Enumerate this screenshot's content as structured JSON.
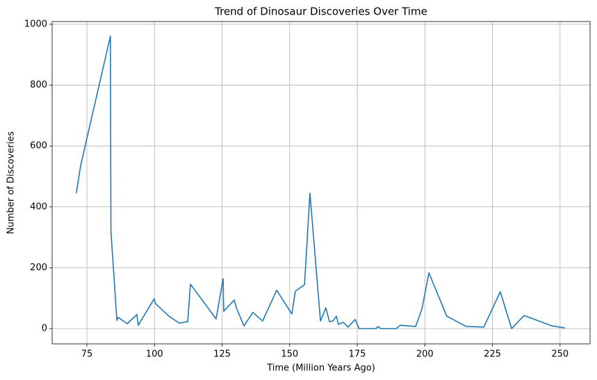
{
  "chart_data": {
    "type": "line",
    "title": "Trend of Dinosaur Discoveries Over Time",
    "x_label": "Time (Million Years Ago)",
    "y_label": "Number of Discoveries",
    "x": [
      71.1,
      72.7,
      83.7,
      83.9,
      86.1,
      86.6,
      89.9,
      93.5,
      94.0,
      99.9,
      100.4,
      105.3,
      109.2,
      112.3,
      113.3,
      122.8,
      125.4,
      125.6,
      129.5,
      130.3,
      133.1,
      136.4,
      140.0,
      145.2,
      150.8,
      152.1,
      155.5,
      157.5,
      161.4,
      163.4,
      164.7,
      166.0,
      167.3,
      168.0,
      169.8,
      171.6,
      174.2,
      175.7,
      181.9,
      182.7,
      183.7,
      189.4,
      190.9,
      196.6,
      198.9,
      201.5,
      208.1,
      215.3,
      221.8,
      227.9,
      232.1,
      236.7,
      247.0,
      251.8
    ],
    "series": [
      {
        "color": "#1f77b4",
        "values": [
          445,
          536,
          961,
          320,
          27,
          37,
          16,
          46,
          11,
          98,
          82,
          41,
          18,
          23,
          146,
          32,
          164,
          57,
          94,
          68,
          9,
          53,
          25,
          126,
          48,
          123,
          144,
          445,
          25,
          68,
          23,
          25,
          41,
          14,
          21,
          5,
          30,
          0,
          0,
          7,
          0,
          0,
          11,
          7,
          64,
          183,
          41,
          7,
          5,
          121,
          0,
          43,
          9,
          2
        ]
      }
    ],
    "xlim": [
      62.15,
      261.1
    ],
    "ylim": [
      -50.2,
      1009
    ],
    "xticks": [
      75,
      100,
      125,
      150,
      175,
      200,
      225,
      250
    ],
    "yticks": [
      0,
      200,
      400,
      600,
      800,
      1000
    ],
    "grid": true
  }
}
